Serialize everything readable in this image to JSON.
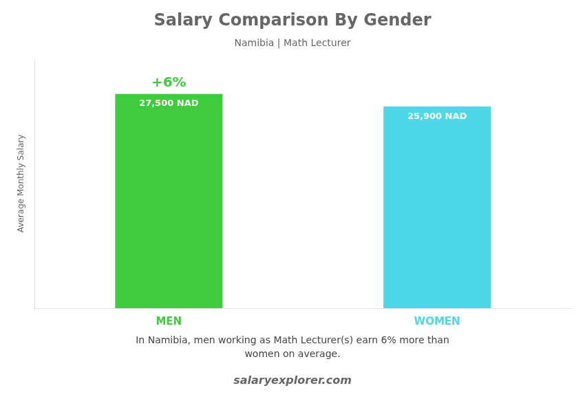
{
  "chart_data": {
    "type": "bar",
    "title": "Salary Comparison By Gender",
    "subtitle": "Namibia | Math Lecturer",
    "categories": [
      "MEN",
      "WOMEN"
    ],
    "values": [
      27500,
      25900
    ],
    "value_labels": [
      "27,500 NAD",
      "25,900 NAD"
    ],
    "data_labels": true,
    "colors": [
      "#3ecc3e",
      "#4dd8e8"
    ],
    "ylabel": "Average Monthly Salary",
    "ylim": [
      0,
      32000
    ],
    "grid": false,
    "tick_labels": "x",
    "annotations": [
      {
        "text": "+6%",
        "category": "MEN"
      }
    ],
    "caption": [
      "In Namibia, men working as Math Lecturer(s) earn 6% more than",
      "women on average."
    ],
    "source": "salaryexplorer.com"
  }
}
